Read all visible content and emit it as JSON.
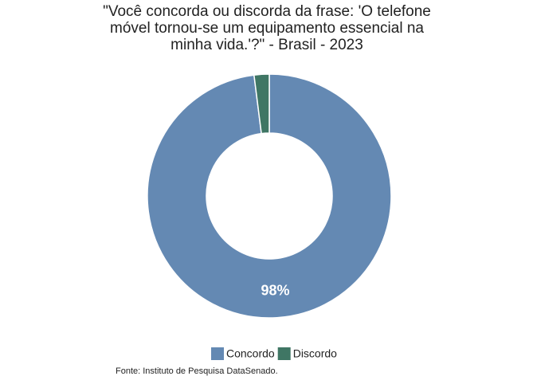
{
  "chart_data": {
    "type": "donut",
    "title": "\"Você concorda ou discorda da frase: 'O telefone móvel tornou-se um equipamento essencial na minha vida.'?\" - Brasil - 2023",
    "categories": [
      "Concordo",
      "Discordo"
    ],
    "values": [
      98,
      2
    ],
    "value_labels": [
      "98%",
      null
    ],
    "colors": [
      "#6489b3",
      "#3f7664"
    ],
    "legend": "bottom",
    "caption": "Fonte: Instituto de Pesquisa DataSenado."
  }
}
